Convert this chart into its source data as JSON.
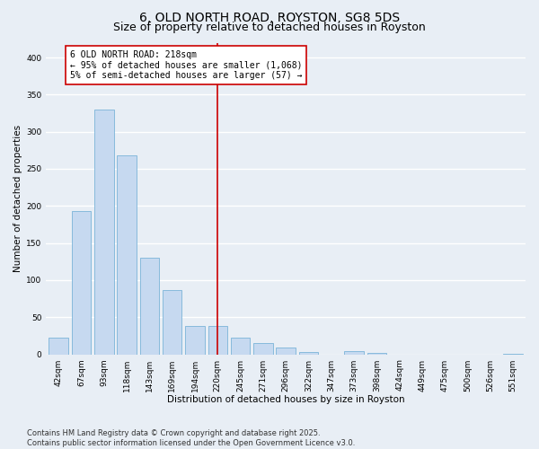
{
  "title": "6, OLD NORTH ROAD, ROYSTON, SG8 5DS",
  "subtitle": "Size of property relative to detached houses in Royston",
  "xlabel": "Distribution of detached houses by size in Royston",
  "ylabel": "Number of detached properties",
  "footnote": "Contains HM Land Registry data © Crown copyright and database right 2025.\nContains public sector information licensed under the Open Government Licence v3.0.",
  "bar_labels": [
    "42sqm",
    "67sqm",
    "93sqm",
    "118sqm",
    "143sqm",
    "169sqm",
    "194sqm",
    "220sqm",
    "245sqm",
    "271sqm",
    "296sqm",
    "322sqm",
    "347sqm",
    "373sqm",
    "398sqm",
    "424sqm",
    "449sqm",
    "475sqm",
    "500sqm",
    "526sqm",
    "551sqm"
  ],
  "bar_values": [
    22,
    193,
    330,
    268,
    130,
    87,
    38,
    38,
    22,
    15,
    9,
    3,
    0,
    4,
    2,
    0,
    0,
    0,
    0,
    0,
    1
  ],
  "bar_color": "#c6d9f0",
  "bar_edge_color": "#7ab4d8",
  "background_color": "#e8eef5",
  "grid_color": "#ffffff",
  "vline_x": 7.0,
  "vline_color": "#cc0000",
  "annotation_text": "6 OLD NORTH ROAD: 218sqm\n← 95% of detached houses are smaller (1,068)\n5% of semi-detached houses are larger (57) →",
  "annotation_box_color": "#cc0000",
  "ylim": [
    0,
    420
  ],
  "yticks": [
    0,
    50,
    100,
    150,
    200,
    250,
    300,
    350,
    400
  ],
  "title_fontsize": 10,
  "subtitle_fontsize": 9,
  "axis_fontsize": 7.5,
  "tick_fontsize": 6.5,
  "annotation_fontsize": 7,
  "footnote_fontsize": 6
}
